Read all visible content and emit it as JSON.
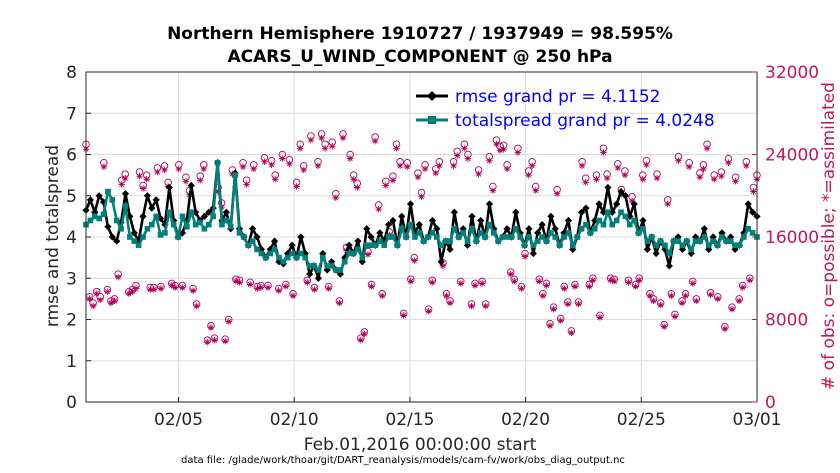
{
  "chart_data": {
    "type": "line",
    "title_line1": "Northern Hemisphere 1910727 / 1937949 = 98.595%",
    "title_line2": "ACARS_U_WIND_COMPONENT @ 250 hPa",
    "xlabel": "Feb.01,2016 00:00:00 start",
    "ylabel_left": "rmse and totalspread",
    "ylabel_right": "# of obs: o=possible; *=assimilated",
    "footnote": "data file: /glade/work/thoar/git/DART_reanalysis/models/cam-fv/work/obs_diag_output.nc",
    "xlim": [
      1,
      30
    ],
    "ylim_left": [
      0,
      8
    ],
    "ylim_right": [
      0,
      32000
    ],
    "x_ticks": [
      5,
      10,
      15,
      20,
      25,
      30
    ],
    "x_tick_labels": [
      "02/05",
      "02/10",
      "02/15",
      "02/20",
      "02/25",
      "03/01"
    ],
    "y_ticks_left": [
      0,
      1,
      2,
      3,
      4,
      5,
      6,
      7,
      8
    ],
    "y_tick_labels_left": [
      "0",
      "1",
      "2",
      "3",
      "4",
      "5",
      "6",
      "7",
      "8"
    ],
    "y_ticks_right": [
      0,
      8000,
      16000,
      24000,
      32000
    ],
    "y_tick_labels_right": [
      "0",
      "8000",
      "16000",
      "24000",
      "32000"
    ],
    "grid": true,
    "legend_position": "top-right",
    "colors": {
      "rmse": "#000000",
      "spread": "#00807a",
      "obs": "#b3005a",
      "right_axis": "#c0185c",
      "legend_text": "#0000ff"
    },
    "series": [
      {
        "name": "rmse grand pr = 4.1152",
        "values": [
          4.65,
          4.9,
          4.6,
          5.0,
          4.85,
          4.25,
          4.0,
          3.9,
          4.35,
          5.05,
          4.5,
          4.1,
          3.9,
          4.5,
          5.0,
          4.7,
          4.9,
          4.45,
          4.3,
          5.2,
          4.4,
          4.0,
          4.1,
          4.4,
          5.25,
          4.6,
          4.4,
          4.5,
          4.6,
          4.7,
          5.8,
          4.4,
          4.6,
          4.2,
          5.55,
          4.2,
          4.0,
          3.8,
          4.2,
          4.0,
          3.7,
          3.5,
          3.7,
          3.9,
          3.4,
          3.35,
          3.6,
          3.8,
          3.5,
          4.0,
          3.6,
          3.1,
          3.3,
          3.0,
          3.6,
          3.2,
          3.4,
          3.2,
          3.1,
          3.5,
          3.8,
          3.6,
          3.9,
          3.4,
          4.2,
          4.0,
          3.8,
          4.1,
          3.9,
          4.3,
          4.4,
          3.8,
          4.5,
          4.0,
          4.8,
          4.1,
          4.3,
          3.9,
          4.0,
          4.4,
          4.2,
          3.4,
          3.9,
          3.7,
          4.6,
          4.0,
          4.2,
          3.8,
          4.5,
          3.9,
          4.4,
          4.0,
          4.8,
          4.2,
          3.9,
          4.0,
          4.2,
          4.0,
          4.6,
          4.1,
          3.8,
          4.2,
          3.6,
          4.1,
          4.3,
          3.9,
          4.5,
          4.2,
          3.8,
          4.1,
          4.4,
          3.7,
          4.0,
          4.6,
          4.7,
          4.1,
          4.4,
          4.8,
          4.6,
          5.2,
          4.6,
          4.8,
          5.1,
          5.0,
          4.5,
          4.8,
          4.1,
          4.4,
          3.7,
          4.0,
          3.6,
          3.9,
          3.7,
          3.3,
          3.9,
          4.0,
          3.7,
          3.9,
          3.6,
          4.0,
          3.9,
          4.2,
          3.7,
          4.0,
          3.8,
          4.1,
          3.9,
          4.0,
          3.7,
          3.8,
          4.1,
          4.8,
          4.6,
          4.5
        ]
      },
      {
        "name": "totalspread grand pr = 4.0248",
        "values": [
          4.3,
          4.4,
          4.5,
          4.45,
          4.55,
          5.1,
          4.9,
          4.4,
          4.2,
          4.75,
          4.0,
          3.9,
          3.8,
          4.0,
          4.2,
          4.3,
          4.5,
          4.05,
          4.1,
          4.6,
          4.3,
          4.0,
          4.5,
          4.25,
          4.6,
          4.3,
          4.35,
          4.2,
          4.3,
          4.5,
          5.8,
          4.3,
          4.4,
          4.25,
          5.5,
          4.1,
          4.0,
          3.8,
          3.9,
          3.7,
          3.6,
          3.5,
          3.6,
          3.7,
          3.5,
          3.4,
          3.5,
          3.6,
          3.5,
          3.6,
          3.5,
          3.3,
          3.3,
          3.2,
          3.5,
          3.3,
          3.3,
          3.2,
          3.2,
          3.4,
          3.6,
          3.6,
          3.7,
          3.5,
          3.8,
          3.8,
          3.8,
          3.9,
          3.8,
          4.0,
          4.0,
          3.8,
          4.2,
          4.0,
          4.3,
          4.0,
          4.1,
          3.9,
          4.0,
          4.1,
          4.0,
          3.8,
          3.9,
          3.9,
          4.2,
          4.0,
          4.1,
          3.9,
          4.2,
          3.9,
          4.1,
          4.0,
          4.3,
          4.1,
          3.9,
          4.0,
          4.0,
          4.0,
          4.2,
          4.0,
          3.8,
          4.0,
          3.8,
          3.9,
          4.0,
          3.9,
          4.1,
          4.0,
          3.8,
          4.0,
          4.1,
          3.8,
          4.0,
          4.2,
          4.3,
          4.1,
          4.2,
          4.4,
          4.3,
          4.6,
          4.3,
          4.4,
          4.6,
          4.5,
          4.3,
          4.4,
          4.1,
          4.2,
          3.9,
          4.0,
          3.8,
          3.9,
          3.8,
          3.6,
          3.9,
          3.9,
          3.8,
          3.9,
          3.7,
          3.9,
          3.9,
          4.0,
          3.8,
          3.9,
          3.8,
          4.0,
          3.9,
          3.9,
          3.8,
          3.8,
          4.0,
          4.2,
          4.1,
          4.0
        ]
      },
      {
        "name": "obs possible",
        "values": [
          25000,
          10200,
          9600,
          10700,
          10200,
          23200,
          10900,
          9800,
          10000,
          12400,
          21500,
          22100,
          10700,
          10900,
          11300,
          22300,
          21000,
          22000,
          11100,
          11100,
          22700,
          11200,
          22900,
          21300,
          11500,
          11300,
          23000,
          11300,
          21800,
          20500,
          11000,
          9500,
          21900,
          23000,
          6000,
          7400,
          6200,
          20800,
          19300,
          6100,
          8000,
          22500,
          11900,
          11800,
          23200,
          21500,
          11600,
          23000,
          11200,
          11300,
          23700,
          11300,
          23400,
          22000,
          11000,
          24000,
          11400,
          23500,
          10500,
          21300,
          25000,
          22900,
          11800,
          25800,
          11100,
          23300,
          26000,
          25000,
          11200,
          25200,
          20200,
          9800,
          26000,
          15000,
          24000,
          22000,
          21200,
          6200,
          6800,
          14600,
          11400,
          25700,
          19100,
          10500,
          21400,
          16500,
          21900,
          25000,
          23300,
          8600,
          23200,
          11900,
          14000,
          22200,
          20300,
          23000,
          9000,
          11800,
          22600,
          23300,
          13500,
          10500,
          9800,
          23300,
          24300,
          11700,
          25000,
          24000,
          9500,
          11500,
          22500,
          11700,
          9500,
          23800,
          20900,
          25400,
          24800,
          24900,
          23000,
          12600,
          11900,
          24600,
          11200,
          14400,
          22400,
          23300,
          20900,
          11900,
          10500,
          11500,
          7600,
          9200,
          20600,
          8100,
          11200,
          9700,
          6900,
          11400,
          9700,
          23300,
          21700,
          11400,
          12000,
          22000,
          8400,
          24600,
          22100,
          12000,
          11900,
          23100,
          20600,
          22400,
          11800,
          19900,
          11400,
          12000,
          22000,
          23400,
          10500,
          10000,
          22100,
          9600,
          7500,
          19600,
          10500,
          8500,
          23800,
          9800,
          10500,
          23200,
          11700,
          10000,
          22200,
          23000,
          25000,
          10600,
          22000,
          10200,
          22300,
          7300,
          23600,
          9200,
          21800,
          10000,
          11300,
          23300,
          12000,
          20800,
          22000
        ]
      },
      {
        "name": "obs assimilated",
        "values": [
          24500,
          10000,
          9300,
          10500,
          9900,
          22800,
          10700,
          9600,
          9800,
          12100,
          21100,
          21700,
          10500,
          10700,
          11000,
          21900,
          20700,
          21600,
          10900,
          10900,
          22300,
          11000,
          22500,
          20900,
          11300,
          11100,
          22600,
          11100,
          21400,
          20100,
          10800,
          9300,
          21500,
          22600,
          5800,
          7200,
          6000,
          20400,
          18900,
          5900,
          7800,
          22100,
          11700,
          11600,
          22800,
          21100,
          11400,
          22600,
          11000,
          11100,
          23300,
          11100,
          23000,
          21600,
          10800,
          23600,
          11200,
          23100,
          10300,
          20900,
          24600,
          22500,
          11600,
          25400,
          10900,
          22900,
          25600,
          24600,
          11000,
          24800,
          19800,
          9600,
          25600,
          14700,
          23600,
          21600,
          20800,
          6000,
          6600,
          14300,
          11200,
          25300,
          18700,
          10300,
          21000,
          16200,
          21500,
          24600,
          22900,
          8400,
          22800,
          11700,
          13700,
          21800,
          19900,
          22600,
          8800,
          11600,
          22200,
          22900,
          13200,
          10300,
          9600,
          22900,
          23900,
          11500,
          24600,
          23600,
          9300,
          11300,
          22100,
          11500,
          9300,
          23400,
          20500,
          25000,
          24400,
          24500,
          22600,
          12400,
          11700,
          24200,
          11000,
          14100,
          22000,
          22900,
          20500,
          11700,
          10300,
          11300,
          7400,
          9000,
          20200,
          7900,
          11000,
          9500,
          6700,
          11200,
          9500,
          22900,
          21300,
          11200,
          11800,
          21600,
          8200,
          24200,
          21700,
          11800,
          11700,
          22700,
          20200,
          22000,
          11600,
          19500,
          11200,
          11800,
          21600,
          23000,
          10300,
          9800,
          21700,
          9400,
          7300,
          19200,
          10300,
          8300,
          23400,
          9600,
          10300,
          22800,
          11500,
          9800,
          21800,
          22600,
          24600,
          10400,
          21600,
          10000,
          21900,
          7100,
          23200,
          9000,
          21400,
          9800,
          11100,
          22900,
          11800,
          20400,
          21600
        ]
      }
    ]
  }
}
